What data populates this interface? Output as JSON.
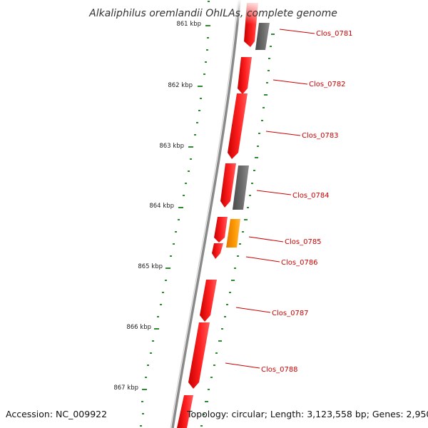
{
  "title": "Alkaliphilus oremlandii OhILAs, complete genome",
  "footer": {
    "accession": "Accession: NC_009922",
    "topology": "Topology: circular; Length: 3,123,558 bp; Genes: 2,950"
  },
  "colors": {
    "forward_cds": "#ff0000",
    "gene_grey": "#6a6a6a",
    "gene_orange": "#ff9a00",
    "tick_dots": "#2e8b2e",
    "backbone": "#8a8a8a",
    "label_red": "#cc0000"
  },
  "ruler_labels": [
    "861 kbp",
    "862 kbp",
    "863 kbp",
    "864 kbp",
    "865 kbp",
    "866 kbp",
    "867 kbp"
  ],
  "genes": [
    {
      "id": "Clos_0781"
    },
    {
      "id": "Clos_0782"
    },
    {
      "id": "Clos_0783"
    },
    {
      "id": "Clos_0784"
    },
    {
      "id": "Clos_0785"
    },
    {
      "id": "Clos_0786"
    },
    {
      "id": "Clos_0787"
    },
    {
      "id": "Clos_0788"
    }
  ]
}
